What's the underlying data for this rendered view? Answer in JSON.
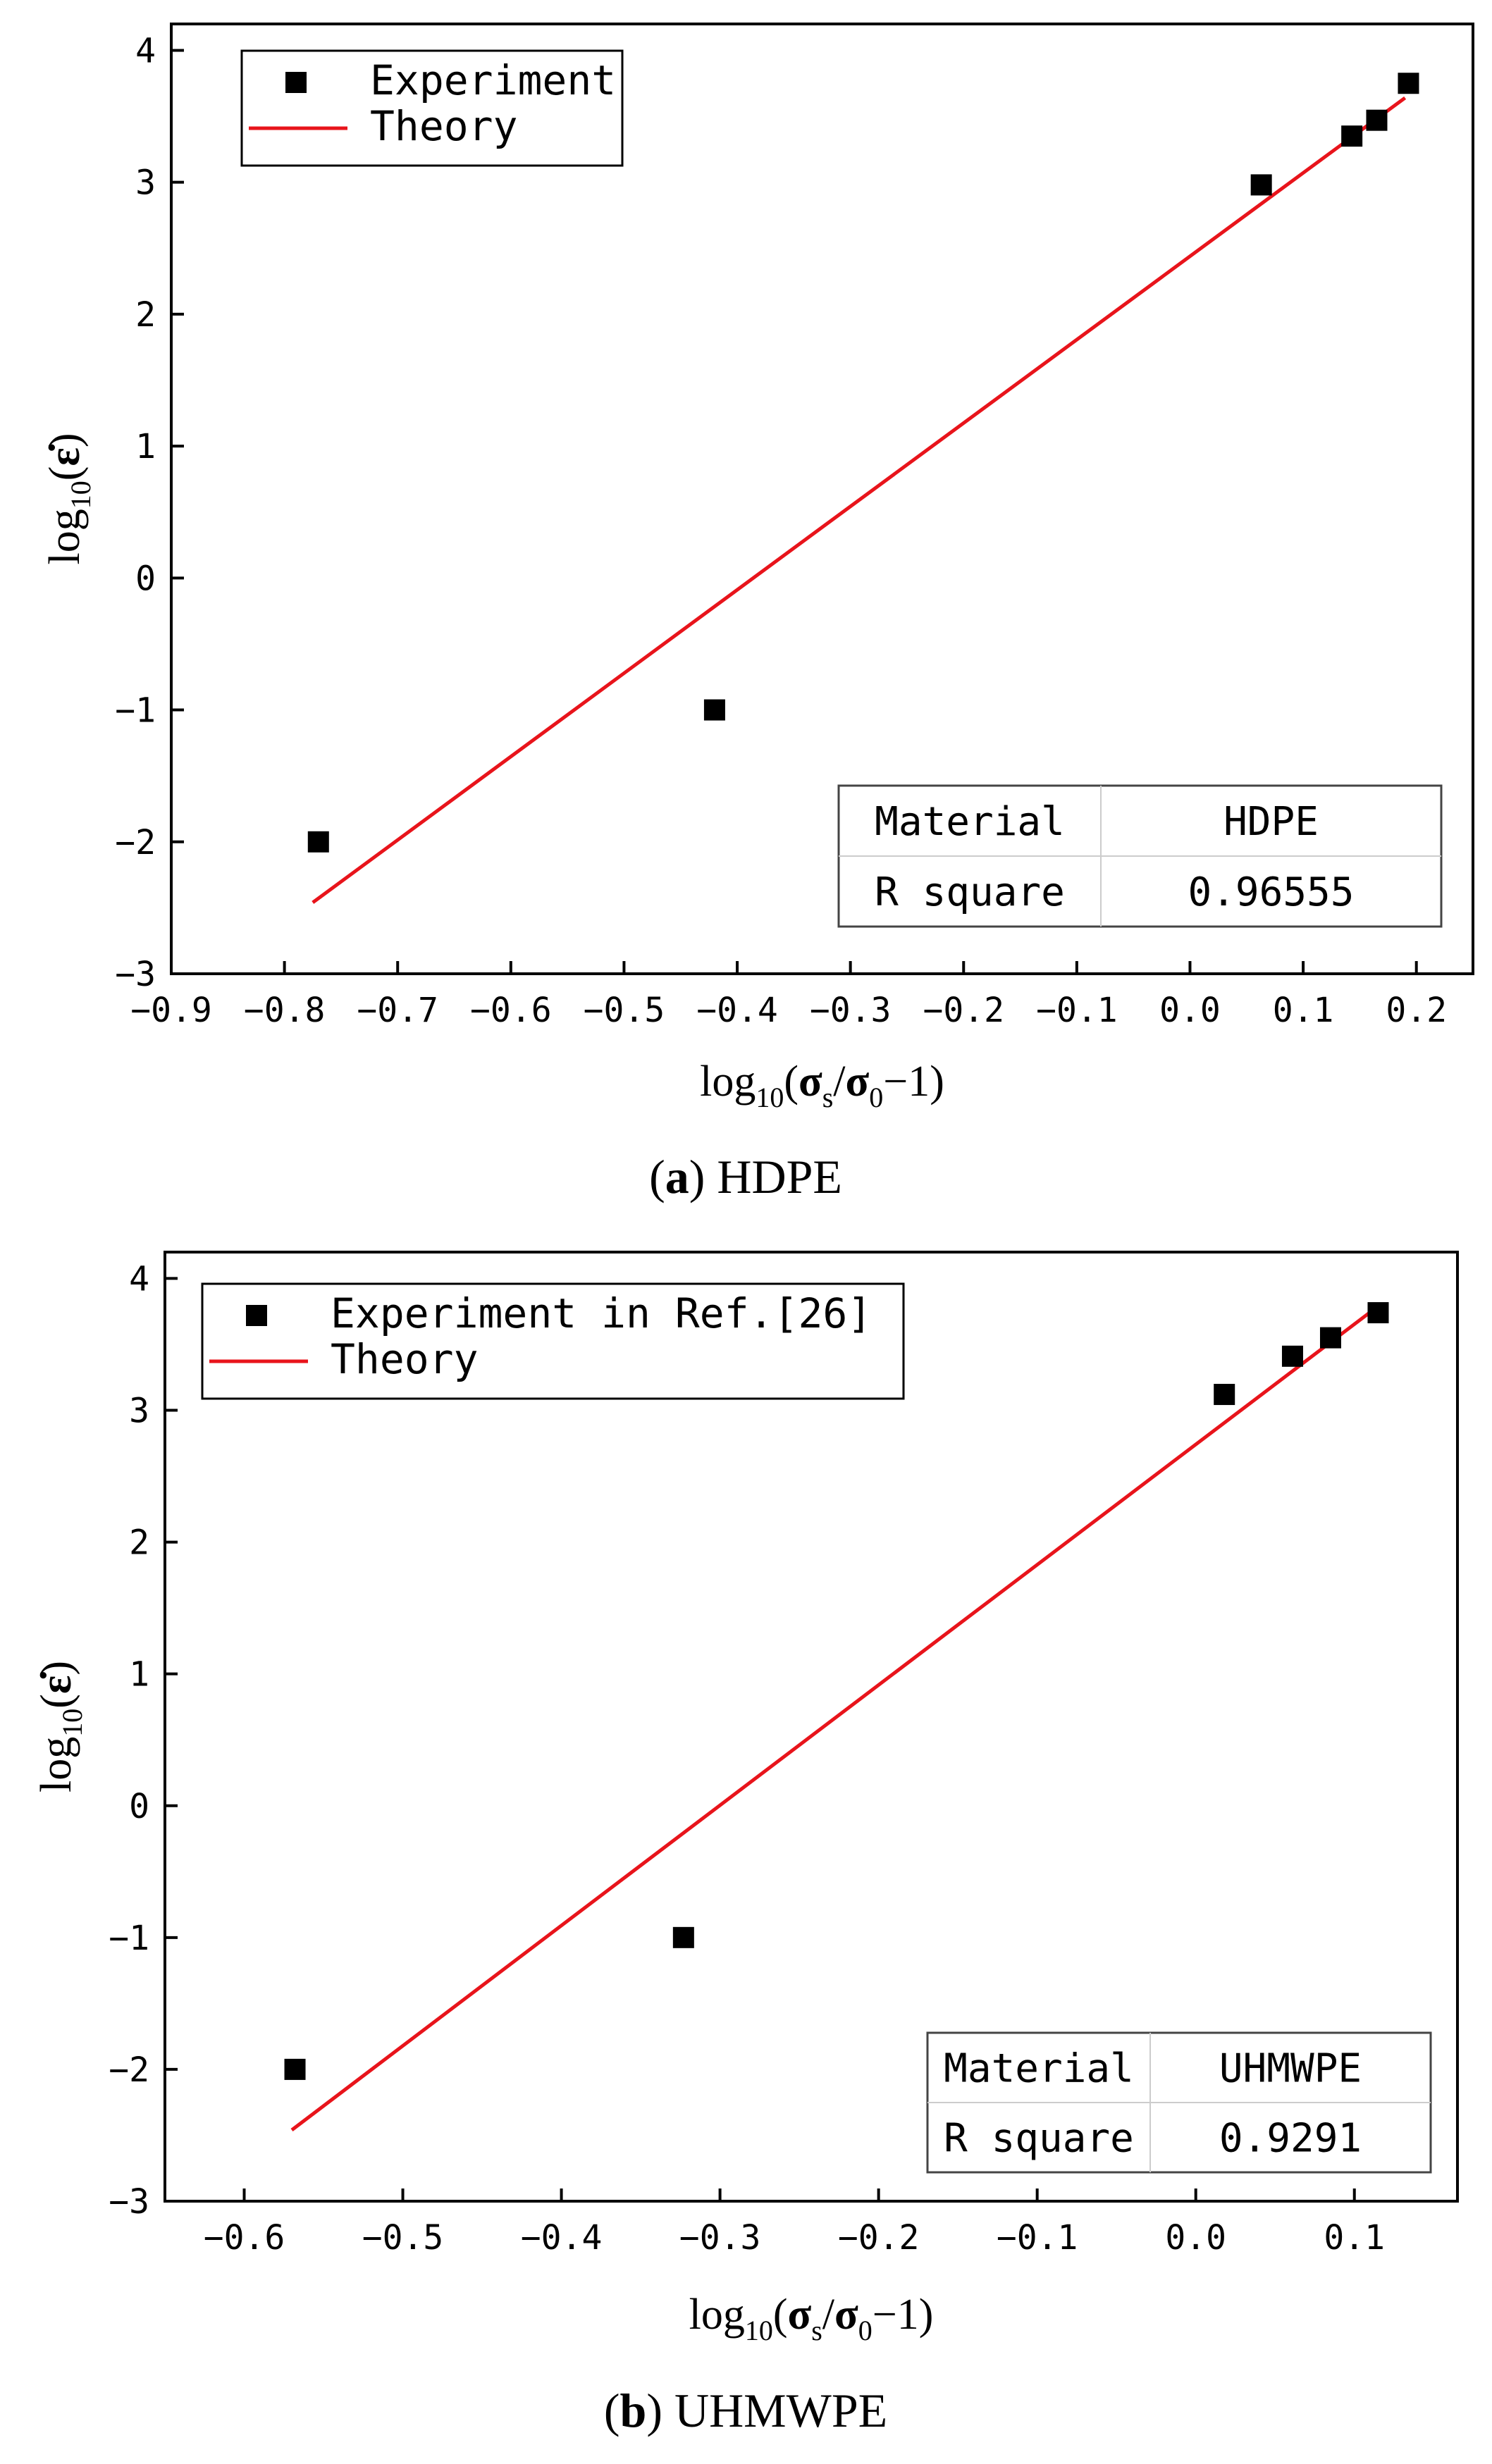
{
  "chart_data": [
    {
      "type": "scatter",
      "panel": "(a)",
      "caption_label": "a",
      "caption_text": "HDPE",
      "xlabel": "log10(σs/σ0−1)",
      "ylabel": "log10(ε̇)",
      "xlim": [
        -0.9,
        0.25
      ],
      "ylim": [
        -3,
        4.2
      ],
      "xticks": [
        -0.9,
        -0.8,
        -0.7,
        -0.6,
        -0.5,
        -0.4,
        -0.3,
        -0.2,
        -0.1,
        0.0,
        0.1,
        0.2
      ],
      "xtick_labels": [
        "−0.9",
        "−0.8",
        "−0.7",
        "−0.6",
        "−0.5",
        "−0.4",
        "−0.3",
        "−0.2",
        "−0.1",
        "0.0",
        "0.1",
        "0.2"
      ],
      "yticks": [
        -3,
        -2,
        -1,
        0,
        1,
        2,
        3,
        4
      ],
      "ytick_labels": [
        "−3",
        "−2",
        "−1",
        "0",
        "1",
        "2",
        "3",
        "4"
      ],
      "grid": false,
      "legend_position": "top-left",
      "series": [
        {
          "name": "Experiment",
          "kind": "scatter",
          "marker": "square",
          "color": "#000000",
          "x": [
            -0.77,
            -0.42,
            0.063,
            0.143,
            0.165,
            0.193
          ],
          "y": [
            -2.0,
            -1.0,
            2.98,
            3.35,
            3.47,
            3.75
          ]
        },
        {
          "name": "Theory",
          "kind": "line",
          "color": "#e8141b",
          "x": [
            -0.775,
            0.19
          ],
          "y": [
            -2.46,
            3.64
          ]
        }
      ],
      "table": {
        "rows": [
          [
            "Material",
            "HDPE"
          ],
          [
            "R square",
            "0.96555"
          ]
        ]
      }
    },
    {
      "type": "scatter",
      "panel": "(b)",
      "caption_label": "b",
      "caption_text": "UHMWPE",
      "xlabel": "log10(σs/σ0−1)",
      "ylabel": "log10(ε̇)",
      "xlim": [
        -0.65,
        0.165
      ],
      "ylim": [
        -3,
        4.2
      ],
      "xticks": [
        -0.6,
        -0.5,
        -0.4,
        -0.3,
        -0.2,
        -0.1,
        0.0,
        0.1
      ],
      "xtick_labels": [
        "−0.6",
        "−0.5",
        "−0.4",
        "−0.3",
        "−0.2",
        "−0.1",
        "0.0",
        "0.1"
      ],
      "yticks": [
        -3,
        -2,
        -1,
        0,
        1,
        2,
        3,
        4
      ],
      "ytick_labels": [
        "−3",
        "−2",
        "−1",
        "0",
        "1",
        "2",
        "3",
        "4"
      ],
      "grid": false,
      "legend_position": "top-left",
      "series": [
        {
          "name": "Experiment in Ref.[26]",
          "kind": "scatter",
          "marker": "square",
          "color": "#000000",
          "x": [
            -0.568,
            -0.323,
            0.018,
            0.061,
            0.085,
            0.115
          ],
          "y": [
            -2.0,
            -1.0,
            3.12,
            3.41,
            3.55,
            3.74
          ]
        },
        {
          "name": "Theory",
          "kind": "line",
          "color": "#e8141b",
          "x": [
            -0.57,
            0.115
          ],
          "y": [
            -2.46,
            3.79
          ]
        }
      ],
      "table": {
        "rows": [
          [
            "Material",
            "UHMWPE"
          ],
          [
            "R square",
            "0.9291"
          ]
        ]
      }
    }
  ]
}
